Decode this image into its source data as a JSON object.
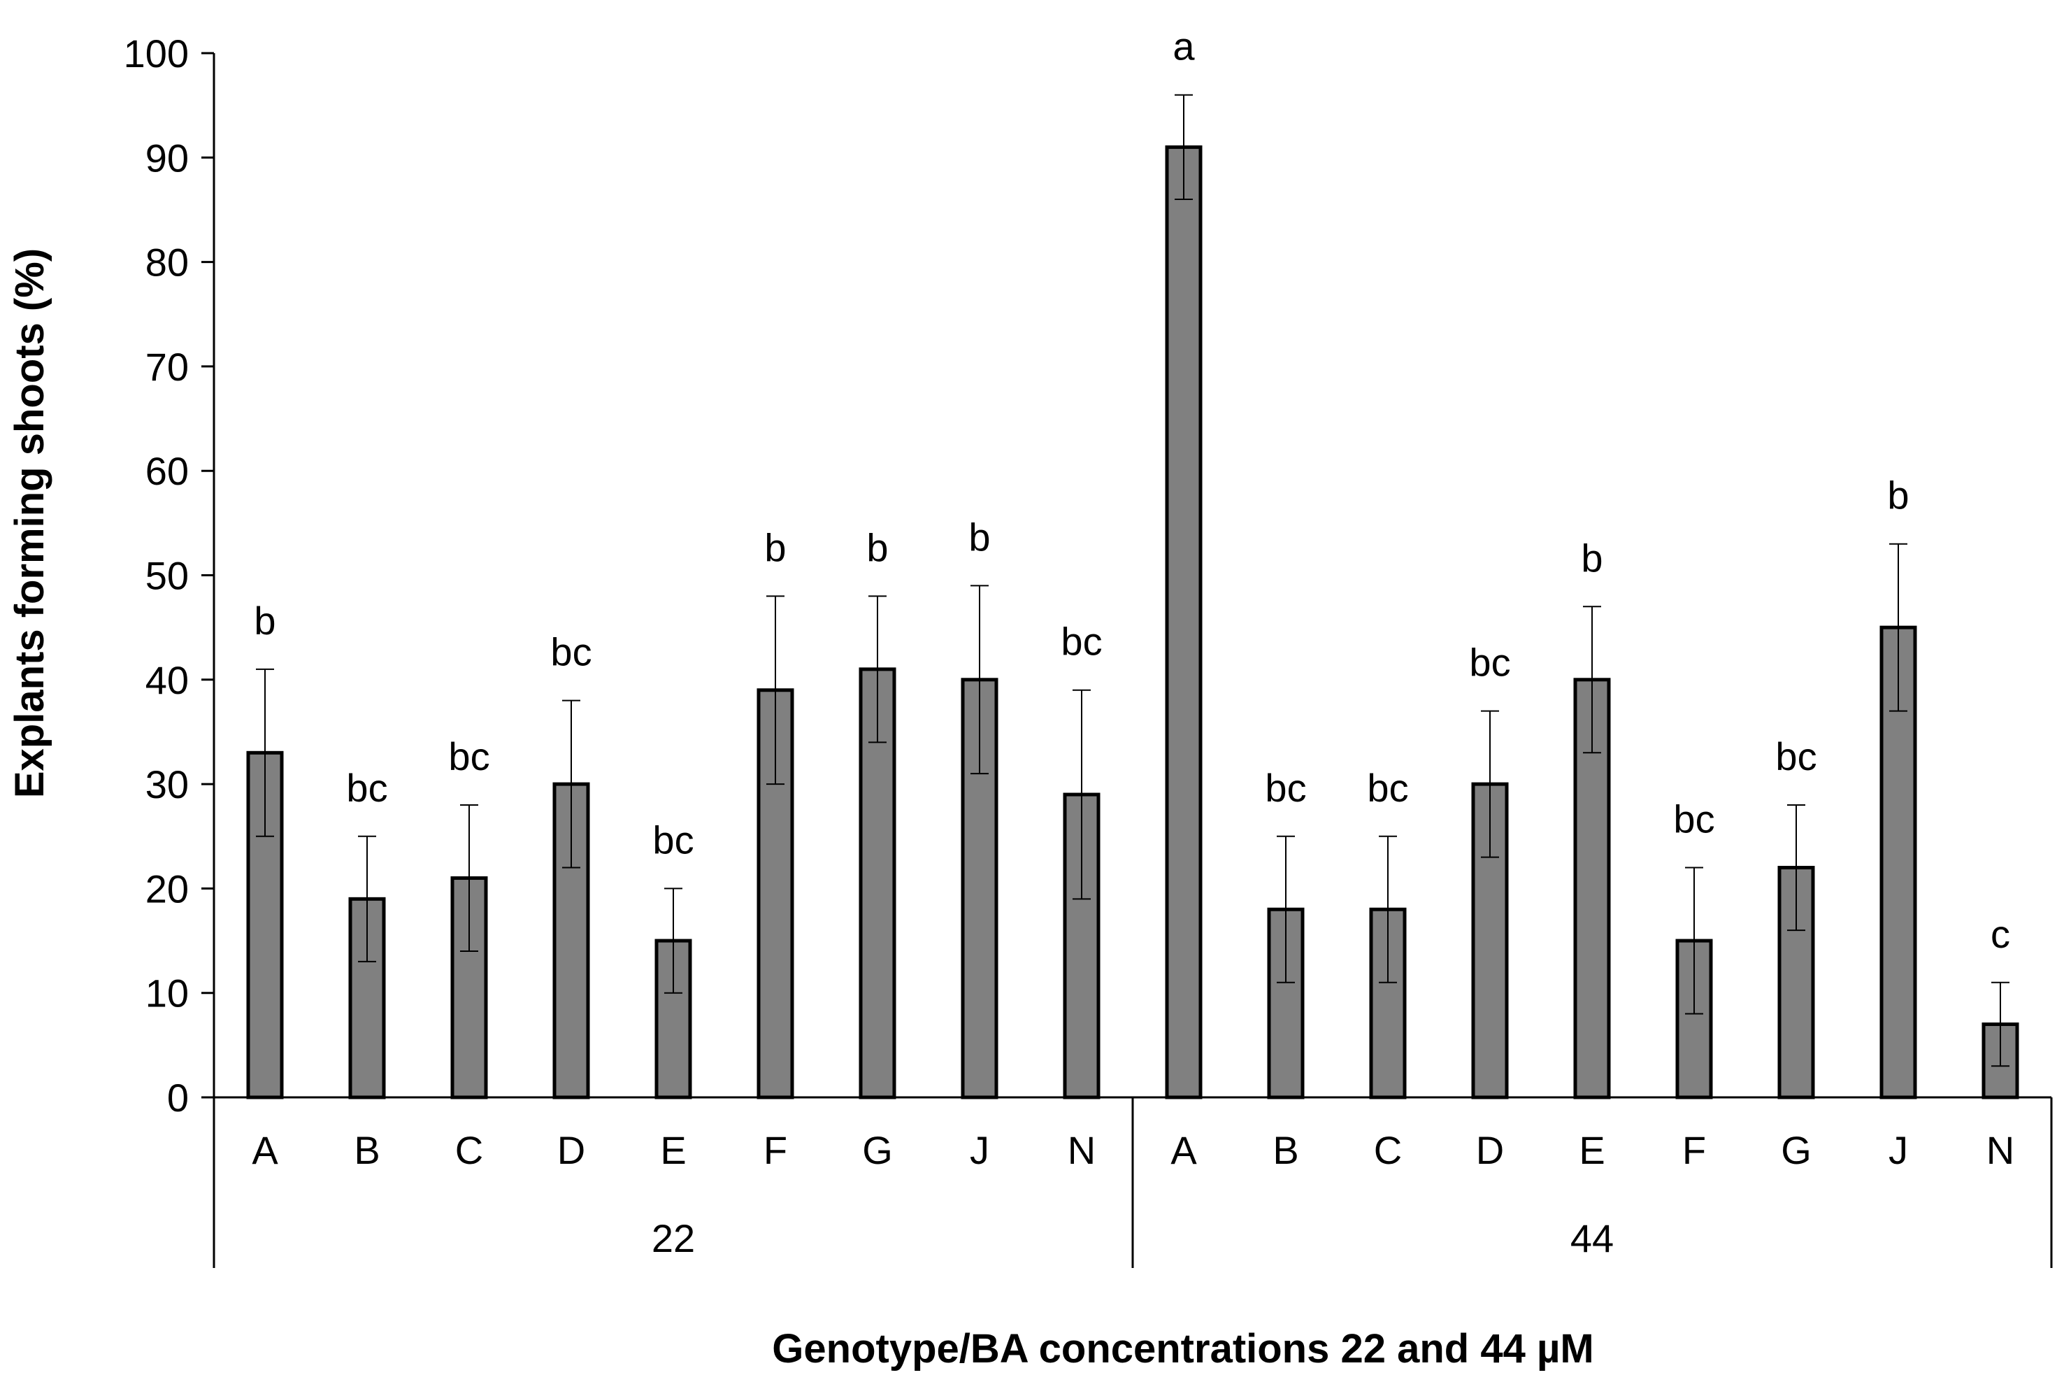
{
  "chart_data": {
    "type": "bar",
    "title": "",
    "ylabel": "Explants forming shoots  (%)",
    "xlabel": "Genotype/BA concentrations 22 and 44 µM",
    "ylim": [
      0,
      100
    ],
    "yticks": [
      0,
      10,
      20,
      30,
      40,
      50,
      60,
      70,
      80,
      90,
      100
    ],
    "grid": false,
    "legend": "none",
    "colors": {
      "bar": "#808080",
      "bar_edge": "#000000",
      "axis": "#000000"
    },
    "groups": [
      {
        "label": "22",
        "categories": [
          "A",
          "B",
          "C",
          "D",
          "E",
          "F",
          "G",
          "J",
          "N"
        ],
        "values": [
          33,
          19,
          21,
          30,
          15,
          39,
          41,
          40,
          29
        ],
        "errors": [
          8,
          6,
          7,
          8,
          5,
          9,
          7,
          9,
          10
        ],
        "significance": [
          "b",
          "bc",
          "bc",
          "bc",
          "bc",
          "b",
          "b",
          "b",
          "bc"
        ]
      },
      {
        "label": "44",
        "categories": [
          "A",
          "B",
          "C",
          "D",
          "E",
          "F",
          "G",
          "J",
          "N"
        ],
        "values": [
          91,
          18,
          18,
          30,
          40,
          15,
          22,
          45,
          7
        ],
        "errors": [
          5,
          7,
          7,
          7,
          7,
          7,
          6,
          8,
          4
        ],
        "significance": [
          "a",
          "bc",
          "bc",
          "bc",
          "b",
          "bc",
          "bc",
          "b",
          "c"
        ]
      }
    ]
  }
}
